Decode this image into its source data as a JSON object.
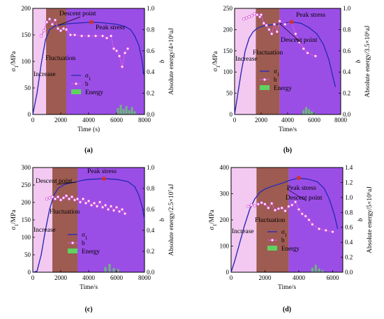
{
  "colors": {
    "increase_region": "#f3c9f1",
    "fluctuation_region": "#9e5b52",
    "post_region": "#9b4ee6",
    "stress_line": "#2b2bb5",
    "b_line": "#d85ad8",
    "peak_marker": "#cc3333",
    "peak_label": "#e0206a",
    "energy": "#5fd35f"
  },
  "chart_data": [
    {
      "panel": "(a)",
      "type": "line",
      "xlabel": "Time (s)",
      "ylabel": "σ1/MPa",
      "y2label": "Absolute energy/4×10⁶aJ",
      "b_label": "b",
      "xlim": [
        0,
        8000
      ],
      "ylim": [
        0,
        200
      ],
      "y2lim": [
        0,
        1.0
      ],
      "xticks": [
        "0",
        "2000",
        "4000",
        "6000",
        "8000"
      ],
      "yticks": [
        "0",
        "50",
        "100",
        "150",
        "200"
      ],
      "y2ticks": [
        "0.0",
        "0.2",
        "0.4",
        "0.6",
        "0.8",
        "1.0"
      ],
      "regions": {
        "increase_end": 950,
        "fluctuation_end": 2400
      },
      "region_labels": {
        "increase": "Increase",
        "fluctuation": "Fluctuation"
      },
      "annotations": {
        "descent": "Descent point",
        "peak": "Peak stress"
      },
      "peak_point": [
        4200,
        174
      ],
      "descent_point": [
        1800,
        168
      ],
      "series": [
        {
          "name": "σ1",
          "x": [
            0,
            300,
            600,
            900,
            1200,
            1600,
            2000,
            2500,
            3000,
            3600,
            4200,
            5000,
            6000,
            6600,
            7000,
            7300,
            7600,
            7800,
            7950
          ],
          "y": [
            0,
            40,
            95,
            140,
            160,
            167,
            169,
            171,
            172,
            173,
            174,
            173,
            170,
            166,
            160,
            148,
            130,
            105,
            75
          ]
        },
        {
          "name": "b",
          "axis": "y2",
          "x": [
            600,
            800,
            1000,
            1200,
            1400,
            1600,
            1800,
            2000,
            2200,
            2400,
            2700,
            3000,
            3500,
            4000,
            4500,
            5000,
            5300,
            5600,
            5800,
            6000,
            6200,
            6400,
            6600,
            6800
          ],
          "y": [
            0.74,
            0.79,
            0.87,
            0.9,
            0.85,
            0.89,
            0.81,
            0.79,
            0.81,
            0.8,
            0.75,
            0.75,
            0.74,
            0.74,
            0.74,
            0.74,
            0.72,
            0.74,
            0.62,
            0.6,
            0.55,
            0.45,
            0.58,
            0.62
          ]
        }
      ],
      "energy_bars": {
        "x": [
          6100,
          6300,
          6500,
          6700,
          6900,
          7100,
          7300
        ],
        "y": [
          0.06,
          0.09,
          0.05,
          0.08,
          0.04,
          0.07,
          0.03
        ]
      },
      "legend": [
        "σ1",
        "b",
        "Energy"
      ]
    },
    {
      "panel": "(b)",
      "type": "line",
      "xlabel": "Time/s",
      "ylabel": "σ1/MPa",
      "y2label": "Absolute energy/3.5×10⁶aJ",
      "b_label": "b",
      "xlim": [
        0,
        8000
      ],
      "ylim": [
        0,
        250
      ],
      "y2lim": [
        0,
        1.0
      ],
      "xticks": [
        "0",
        "2000",
        "4000",
        "6000",
        "8000"
      ],
      "yticks": [
        "0",
        "50",
        "100",
        "150",
        "200",
        "250"
      ],
      "y2ticks": [
        "0.0",
        "0.2",
        "0.4",
        "0.6",
        "0.8",
        "1.0"
      ],
      "regions": {
        "increase_end": 1600,
        "fluctuation_end": 3400
      },
      "region_labels": {
        "increase": "Increase",
        "fluctuation": "Fluctuation"
      },
      "annotations": {
        "descent": "Descent point",
        "peak": "Peak stress"
      },
      "peak_point": [
        4300,
        218
      ],
      "descent_point": [
        3400,
        214
      ],
      "series": [
        {
          "name": "σ1",
          "x": [
            0,
            200,
            500,
            800,
            1100,
            1400,
            1700,
            2000,
            2500,
            3000,
            3500,
            4300,
            5000,
            5600,
            6200,
            6700,
            7100,
            7400,
            7600
          ],
          "y": [
            0,
            40,
            100,
            150,
            180,
            195,
            203,
            207,
            210,
            212,
            214,
            218,
            215,
            205,
            190,
            165,
            130,
            90,
            65
          ]
        },
        {
          "name": "b",
          "axis": "y2",
          "x": [
            700,
            900,
            1100,
            1300,
            1500,
            1700,
            1900,
            2000,
            2200,
            2400,
            2600,
            2800,
            3000,
            3200,
            3400,
            3800,
            4300,
            4600,
            4900,
            5200,
            5500,
            6100
          ],
          "y": [
            0.9,
            0.91,
            0.92,
            0.93,
            0.95,
            0.94,
            0.92,
            0.94,
            0.86,
            0.84,
            0.8,
            0.76,
            0.85,
            0.78,
            0.88,
            0.85,
            0.87,
            0.76,
            0.68,
            0.62,
            0.58,
            0.55
          ]
        }
      ],
      "energy_bars": {
        "x": [
          5200,
          5400,
          5600,
          5800,
          6000
        ],
        "y": [
          0.04,
          0.07,
          0.05,
          0.03,
          0.02
        ]
      },
      "legend": [
        "σ1",
        "b",
        "Energy"
      ]
    },
    {
      "panel": "(c)",
      "type": "line",
      "xlabel": "Time/s",
      "ylabel": "σ1/MPa",
      "y2label": "Absolute energy/2.5×10⁷aJ",
      "b_label": "b",
      "xlim": [
        0,
        8000
      ],
      "ylim": [
        0,
        300
      ],
      "y2lim": [
        0,
        1.0
      ],
      "xticks": [
        "0",
        "2000",
        "4000",
        "6000",
        "8000"
      ],
      "yticks": [
        "0",
        "50",
        "100",
        "150",
        "200",
        "250",
        "300"
      ],
      "y2ticks": [
        "0.0",
        "0.2",
        "0.4",
        "0.6",
        "0.8",
        "1.0"
      ],
      "regions": {
        "increase_end": 1400,
        "fluctuation_end": 3200
      },
      "region_labels": {
        "increase": "Increase",
        "fluctuation": "Fluctuation"
      },
      "annotations": {
        "descent": "Descent point",
        "peak": "Peak stress"
      },
      "peak_point": [
        5100,
        268
      ],
      "descent_point": [
        3100,
        258
      ],
      "series": [
        {
          "name": "σ1",
          "x": [
            0,
            300,
            600,
            900,
            1200,
            1500,
            1800,
            2200,
            2600,
            3000,
            3500,
            4000,
            5100,
            6000,
            6800,
            7300,
            7600,
            7850,
            8000
          ],
          "y": [
            0,
            3,
            50,
            120,
            180,
            220,
            240,
            250,
            255,
            258,
            263,
            266,
            268,
            266,
            260,
            245,
            220,
            185,
            150
          ]
        },
        {
          "name": "b",
          "axis": "y2",
          "x": [
            1000,
            1200,
            1400,
            1600,
            1800,
            2000,
            2200,
            2400,
            2600,
            2800,
            3000,
            3200,
            3400,
            3600,
            3800,
            4000,
            4200,
            4400,
            4600,
            4800,
            5000,
            5200,
            5400,
            5600,
            5800,
            6000,
            6200,
            6400,
            6600
          ],
          "y": [
            0.7,
            0.71,
            0.72,
            0.7,
            0.72,
            0.69,
            0.71,
            0.73,
            0.7,
            0.72,
            0.69,
            0.7,
            0.67,
            0.7,
            0.66,
            0.68,
            0.64,
            0.66,
            0.63,
            0.67,
            0.62,
            0.64,
            0.6,
            0.63,
            0.59,
            0.62,
            0.58,
            0.6,
            0.56
          ]
        }
      ],
      "energy_bars": {
        "x": [
          5200,
          5500,
          5800,
          6100
        ],
        "y": [
          0.05,
          0.08,
          0.04,
          0.03
        ]
      },
      "legend": [
        "σ1",
        "b",
        "Energy"
      ]
    },
    {
      "panel": "(d)",
      "type": "line",
      "xlabel": "Time/s",
      "ylabel": "σ1/MPa",
      "y2label": "Absolute energy/5×10⁶aJ",
      "b_label": "b",
      "xlim": [
        0,
        6600
      ],
      "ylim": [
        0,
        400
      ],
      "y2lim": [
        0,
        1.4
      ],
      "xticks": [
        "0",
        "2000",
        "4000",
        "6000"
      ],
      "yticks": [
        "0",
        "100",
        "200",
        "300",
        "400"
      ],
      "y2ticks": [
        "0.0",
        "0.2",
        "0.4",
        "0.6",
        "0.8",
        "1.0",
        "1.2",
        "1.4"
      ],
      "regions": {
        "increase_end": 1500,
        "fluctuation_end": 3400
      },
      "region_labels": {
        "increase": "Increase",
        "fluctuation": "Fluctuation"
      },
      "annotations": {
        "descent": "Descent point",
        "peak": "Peak stress"
      },
      "peak_point": [
        4000,
        360
      ],
      "descent_point": [
        3300,
        318
      ],
      "series": [
        {
          "name": "σ1",
          "x": [
            0,
            200,
            500,
            800,
            1100,
            1400,
            1700,
            2000,
            2500,
            3000,
            3400,
            4000,
            4600,
            5100,
            5500,
            5800,
            6100,
            6300
          ],
          "y": [
            0,
            40,
            110,
            180,
            240,
            280,
            305,
            318,
            330,
            340,
            350,
            360,
            355,
            345,
            320,
            280,
            220,
            165
          ]
        },
        {
          "name": "b",
          "axis": "y2",
          "x": [
            1000,
            1200,
            1400,
            1600,
            1800,
            2000,
            2200,
            2400,
            2600,
            2800,
            3000,
            3200,
            3400,
            3600,
            3800,
            4000,
            4200,
            4400,
            4600,
            4800,
            5200,
            5600,
            6000
          ],
          "y": [
            0.88,
            0.9,
            0.89,
            0.91,
            0.93,
            0.91,
            0.86,
            0.92,
            0.83,
            0.85,
            0.86,
            0.82,
            0.88,
            0.9,
            0.94,
            0.84,
            0.78,
            0.75,
            0.7,
            0.64,
            0.58,
            0.56,
            0.54
          ]
        }
      ],
      "energy_bars": {
        "x": [
          4800,
          5000,
          5200,
          5400
        ],
        "y": [
          0.06,
          0.1,
          0.05,
          0.03
        ]
      },
      "legend": [
        "σ1",
        "b",
        "Energy"
      ]
    }
  ]
}
